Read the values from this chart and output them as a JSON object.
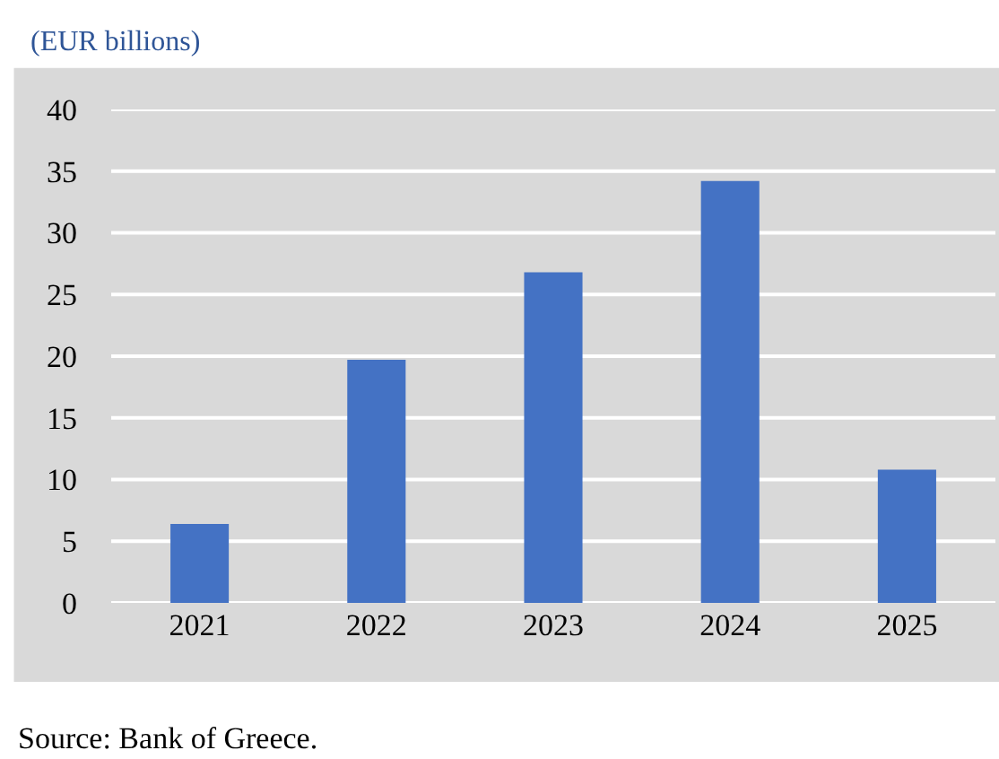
{
  "chart_data": {
    "type": "bar",
    "ylabel": "(EUR billions)",
    "categories": [
      "2021",
      "2022",
      "2023",
      "2024",
      "2025"
    ],
    "values": [
      6.4,
      19.7,
      26.8,
      34.2,
      10.8
    ],
    "color": "#4472c4",
    "ylim": [
      0,
      40
    ],
    "yticks": [
      0,
      5,
      10,
      15,
      20,
      25,
      30,
      35,
      40
    ],
    "grid": "y",
    "legend": false,
    "annotations": [
      "Source: Bank of Greece."
    ]
  }
}
